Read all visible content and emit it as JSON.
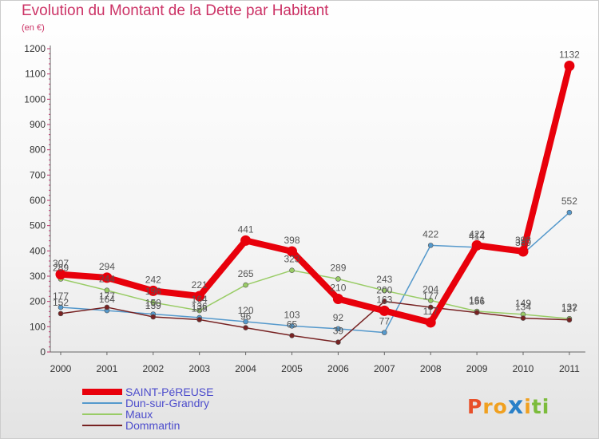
{
  "header": {
    "title": "Evolution du Montant de la Dette par Habitant",
    "subtitle": "(en €)"
  },
  "logo": {
    "text": "Proxiti",
    "colors": [
      "#e8502a",
      "#f0a020",
      "#2a80c8",
      "#7cbc3c"
    ]
  },
  "chart_data": {
    "type": "line",
    "title": "Evolution du Montant de la Dette par Habitant",
    "subtitle": "(en €)",
    "xlabel": "",
    "ylabel": "",
    "x": [
      "2000",
      "2001",
      "2002",
      "2003",
      "2004",
      "2005",
      "2006",
      "2007",
      "2008",
      "2009",
      "2010",
      "2011"
    ],
    "ylim": [
      0,
      1200
    ],
    "yticks": [
      0,
      100,
      200,
      300,
      400,
      500,
      600,
      700,
      800,
      900,
      1000,
      1100,
      1200
    ],
    "grid": false,
    "legend_position": "bottom-left",
    "series": [
      {
        "name": "SAINT-PéREUSE",
        "color": "#e8000b",
        "values": [
          307,
          294,
          242,
          221,
          441,
          398,
          210,
          163,
          117,
          422,
          398,
          1132
        ]
      },
      {
        "name": "Dun-sur-Grandry",
        "color": "#5599cc",
        "values": [
          177,
          164,
          150,
          136,
          120,
          103,
          92,
          77,
          422,
          414,
          389,
          552
        ]
      },
      {
        "name": "Maux",
        "color": "#99cc66",
        "values": [
          289,
          244,
          196,
          164,
          265,
          323,
          289,
          243,
          204,
          161,
          149,
          132
        ]
      },
      {
        "name": "Dommartin",
        "color": "#772222",
        "values": [
          152,
          177,
          139,
          128,
          96,
          65,
          39,
          200,
          177,
          156,
          134,
          127
        ]
      }
    ]
  }
}
